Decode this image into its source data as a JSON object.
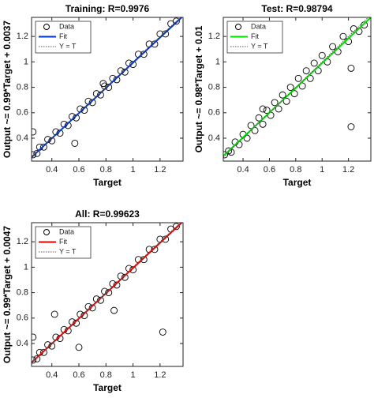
{
  "chart_data": [
    {
      "type": "scatter",
      "title": "Training: R=0.9976",
      "xlabel": "Target",
      "ylabel": "Output ~= 0.99*Target + 0.0037",
      "xlim": [
        0.25,
        1.37
      ],
      "ylim": [
        0.22,
        1.35
      ],
      "xticks": [
        0.4,
        0.6,
        0.8,
        1,
        1.2
      ],
      "yticks": [
        0.4,
        0.6,
        0.8,
        1,
        1.2
      ],
      "legend": "upper left",
      "series": [
        {
          "name": "Data",
          "color": "#000000",
          "x": [
            0.26,
            0.29,
            0.31,
            0.34,
            0.37,
            0.4,
            0.43,
            0.46,
            0.49,
            0.52,
            0.55,
            0.58,
            0.61,
            0.64,
            0.67,
            0.7,
            0.73,
            0.76,
            0.79,
            0.82,
            0.85,
            0.88,
            0.91,
            0.94,
            0.97,
            1.0,
            1.04,
            1.08,
            1.12,
            1.16,
            1.2,
            1.24,
            1.28,
            1.32,
            0.26,
            0.57,
            0.78
          ],
          "values": [
            0.27,
            0.28,
            0.33,
            0.33,
            0.39,
            0.38,
            0.45,
            0.44,
            0.51,
            0.5,
            0.57,
            0.56,
            0.63,
            0.62,
            0.69,
            0.68,
            0.75,
            0.74,
            0.81,
            0.8,
            0.87,
            0.86,
            0.93,
            0.92,
            0.99,
            0.98,
            1.06,
            1.06,
            1.14,
            1.14,
            1.22,
            1.22,
            1.3,
            1.32,
            0.45,
            0.36,
            0.83
          ]
        },
        {
          "name": "Fit",
          "color": "#0033cc",
          "x": [
            0.25,
            1.37
          ],
          "values": [
            0.25,
            1.36
          ]
        },
        {
          "name": "Y = T",
          "color": "#555555",
          "x": [
            0.25,
            1.37
          ],
          "values": [
            0.25,
            1.37
          ]
        }
      ]
    },
    {
      "type": "scatter",
      "title": "Test: R=0.98794",
      "xlabel": "Target",
      "ylabel": "Output ~= 0.98*Target + 0.01",
      "xlim": [
        0.25,
        1.37
      ],
      "ylim": [
        0.22,
        1.35
      ],
      "xticks": [
        0.4,
        0.6,
        0.8,
        1,
        1.2
      ],
      "yticks": [
        0.4,
        0.6,
        0.8,
        1,
        1.2
      ],
      "legend": "upper left",
      "series": [
        {
          "name": "Data",
          "color": "#000000",
          "x": [
            0.26,
            0.29,
            0.31,
            0.34,
            0.37,
            0.4,
            0.43,
            0.46,
            0.49,
            0.52,
            0.55,
            0.58,
            0.61,
            0.64,
            0.67,
            0.7,
            0.73,
            0.76,
            0.79,
            0.82,
            0.85,
            0.88,
            0.91,
            0.94,
            0.97,
            1.0,
            1.04,
            1.08,
            1.12,
            1.16,
            1.2,
            1.24,
            1.28,
            1.32,
            0.55,
            1.22,
            1.22
          ],
          "values": [
            0.27,
            0.3,
            0.29,
            0.37,
            0.35,
            0.43,
            0.4,
            0.5,
            0.46,
            0.56,
            0.51,
            0.62,
            0.58,
            0.68,
            0.63,
            0.74,
            0.69,
            0.8,
            0.75,
            0.87,
            0.81,
            0.93,
            0.87,
            0.99,
            0.93,
            1.05,
            1.0,
            1.12,
            1.08,
            1.2,
            1.16,
            1.26,
            1.24,
            1.29,
            0.63,
            0.49,
            0.95
          ]
        },
        {
          "name": "Fit",
          "color": "#00dd00",
          "x": [
            0.25,
            1.37
          ],
          "values": [
            0.26,
            1.35
          ]
        },
        {
          "name": "Y = T",
          "color": "#555555",
          "x": [
            0.25,
            1.37
          ],
          "values": [
            0.25,
            1.37
          ]
        }
      ]
    },
    {
      "type": "scatter",
      "title": "All: R=0.99623",
      "xlabel": "Target",
      "ylabel": "Output ~= 0.99*Target + 0.0047",
      "xlim": [
        0.25,
        1.37
      ],
      "ylim": [
        0.22,
        1.35
      ],
      "xticks": [
        0.4,
        0.6,
        0.8,
        1,
        1.2
      ],
      "yticks": [
        0.4,
        0.6,
        0.8,
        1,
        1.2
      ],
      "legend": "upper left",
      "series": [
        {
          "name": "Data",
          "color": "#000000",
          "x": [
            0.26,
            0.29,
            0.31,
            0.34,
            0.37,
            0.4,
            0.43,
            0.46,
            0.49,
            0.52,
            0.55,
            0.58,
            0.61,
            0.64,
            0.67,
            0.7,
            0.73,
            0.76,
            0.79,
            0.82,
            0.85,
            0.88,
            0.91,
            0.94,
            0.97,
            1.0,
            1.04,
            1.08,
            1.12,
            1.16,
            1.2,
            1.24,
            1.28,
            1.32,
            0.26,
            0.6,
            0.42,
            1.22,
            0.86
          ],
          "values": [
            0.27,
            0.28,
            0.33,
            0.33,
            0.39,
            0.38,
            0.45,
            0.44,
            0.51,
            0.5,
            0.57,
            0.56,
            0.63,
            0.62,
            0.69,
            0.68,
            0.75,
            0.74,
            0.81,
            0.8,
            0.87,
            0.86,
            0.93,
            0.92,
            0.99,
            0.98,
            1.06,
            1.06,
            1.14,
            1.14,
            1.22,
            1.22,
            1.3,
            1.32,
            0.45,
            0.37,
            0.63,
            0.49,
            0.66
          ]
        },
        {
          "name": "Fit",
          "color": "#ee0000",
          "x": [
            0.25,
            1.37
          ],
          "values": [
            0.25,
            1.36
          ]
        },
        {
          "name": "Y = T",
          "color": "#555555",
          "x": [
            0.25,
            1.37
          ],
          "values": [
            0.25,
            1.37
          ]
        }
      ]
    }
  ]
}
